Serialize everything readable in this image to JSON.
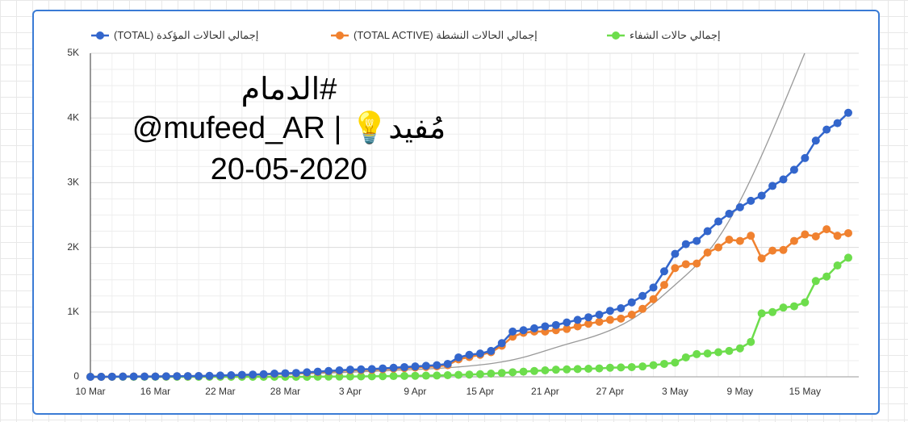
{
  "chart_data": {
    "type": "line",
    "annotations": [
      "#الدمام",
      "@mufeed_AR | 💡مُفيد",
      "20-05-2020"
    ],
    "categories": [
      "10 Mar",
      null,
      null,
      null,
      null,
      null,
      "16 Mar",
      null,
      null,
      null,
      null,
      null,
      "22 Mar",
      null,
      null,
      null,
      null,
      null,
      "28 Mar",
      null,
      null,
      null,
      null,
      null,
      "3 Apr",
      null,
      null,
      null,
      null,
      null,
      "9 Apr",
      null,
      null,
      null,
      null,
      null,
      "15 Apr",
      null,
      null,
      null,
      null,
      null,
      "21 Apr",
      null,
      null,
      null,
      null,
      null,
      "27 Apr",
      null,
      null,
      null,
      null,
      null,
      "3 May",
      null,
      null,
      null,
      null,
      null,
      "9 May",
      null,
      null,
      null,
      null,
      null,
      "15 May",
      null,
      null,
      null,
      null
    ],
    "series": [
      {
        "name": "إجمالي الحالات المؤكدة (TOTAL)",
        "color": "#3366cc",
        "values": [
          0,
          0,
          2,
          4,
          5,
          5,
          5,
          8,
          10,
          11,
          12,
          15,
          20,
          25,
          30,
          35,
          40,
          50,
          55,
          60,
          70,
          80,
          90,
          100,
          110,
          115,
          120,
          130,
          140,
          150,
          160,
          170,
          180,
          200,
          300,
          340,
          360,
          400,
          520,
          700,
          720,
          750,
          780,
          800,
          840,
          880,
          920,
          960,
          1020,
          1060,
          1150,
          1250,
          1380,
          1630,
          1900,
          2050,
          2100,
          2250,
          2400,
          2520,
          2620,
          2720,
          2800,
          2950,
          3050,
          3200,
          3380,
          3650,
          3820,
          3920,
          4080
        ]
      },
      {
        "name": "إجمالي الحالات النشطة (TOTAL ACTIVE)",
        "color": "#f0812f",
        "values": [
          0,
          0,
          2,
          4,
          5,
          5,
          5,
          7,
          9,
          10,
          11,
          13,
          18,
          22,
          27,
          31,
          36,
          45,
          50,
          54,
          63,
          72,
          81,
          90,
          99,
          104,
          108,
          117,
          126,
          135,
          144,
          153,
          162,
          180,
          270,
          306,
          340,
          380,
          480,
          620,
          680,
          700,
          700,
          720,
          740,
          780,
          820,
          850,
          880,
          900,
          960,
          1050,
          1200,
          1420,
          1680,
          1740,
          1750,
          1920,
          2000,
          2120,
          2100,
          2180,
          1830,
          1950,
          1960,
          2100,
          2200,
          2170,
          2280,
          2180,
          2220
        ]
      },
      {
        "name": "إجمالي حالات الشفاء",
        "color": "#6ddd4c",
        "values": [
          0,
          0,
          0,
          0,
          0,
          0,
          0,
          0,
          0,
          0,
          0,
          0,
          0,
          0,
          0,
          0,
          0,
          0,
          0,
          0,
          0,
          2,
          3,
          4,
          5,
          6,
          8,
          10,
          12,
          14,
          16,
          18,
          20,
          25,
          30,
          35,
          40,
          50,
          60,
          70,
          80,
          90,
          100,
          110,
          115,
          120,
          125,
          130,
          140,
          145,
          150,
          160,
          180,
          200,
          220,
          300,
          350,
          360,
          380,
          400,
          440,
          540,
          980,
          1000,
          1070,
          1090,
          1150,
          1480,
          1550,
          1720,
          1840
        ]
      }
    ],
    "ylim": [
      0,
      5000
    ],
    "yticks": [
      0,
      {
        "value": 1000,
        "label": "1K"
      },
      {
        "value": 2000,
        "label": "2K"
      },
      {
        "value": 3000,
        "label": "3K"
      },
      {
        "value": 4000,
        "label": "4K"
      },
      {
        "value": 5000,
        "label": "5K"
      }
    ],
    "grid": true
  }
}
